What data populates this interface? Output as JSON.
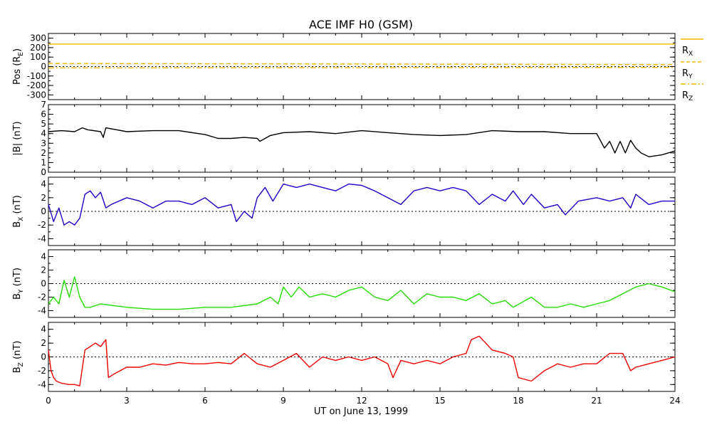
{
  "title": "ACE IMF H0 (GSM)",
  "x_axis": {
    "label": "UT on June 13, 1999",
    "min": 0,
    "max": 24,
    "ticks": [
      0,
      3,
      6,
      9,
      12,
      15,
      18,
      21,
      24
    ],
    "tick_labels": [
      "0",
      "3",
      "6",
      "9",
      "12",
      "15",
      "18",
      "21",
      "24"
    ]
  },
  "legend": {
    "placement": "right of top panel",
    "entries": [
      {
        "label": "R",
        "sub": "X",
        "color": "#f2b600",
        "dash": "solid"
      },
      {
        "label": "R",
        "sub": "Y",
        "color": "#f2b600",
        "dash": "dashed"
      },
      {
        "label": "R",
        "sub": "Z",
        "color": "#f2b600",
        "dash": "dashdot"
      }
    ]
  },
  "chart_data": [
    {
      "id": "pos",
      "type": "line",
      "ylabel": "Pos (R",
      "ylabel_sub": "E",
      "ylabel_tail": ")",
      "ylim": [
        -350,
        350
      ],
      "yticks": [
        300,
        200,
        100,
        0,
        -100,
        -200,
        -300
      ],
      "zero_line": true,
      "series": [
        {
          "name": "R_X",
          "color": "#f2b600",
          "dash": "solid",
          "x": [
            0,
            24
          ],
          "y": [
            238,
            238
          ]
        },
        {
          "name": "R_Y",
          "color": "#f2b600",
          "dash": "dashed",
          "x": [
            0,
            24
          ],
          "y": [
            33,
            20
          ]
        },
        {
          "name": "R_Z",
          "color": "#f2b600",
          "dash": "dashdot",
          "x": [
            0,
            24
          ],
          "y": [
            -15,
            -10
          ]
        }
      ]
    },
    {
      "id": "btot",
      "type": "line",
      "ylabel": "|B| (nT)",
      "ylim": [
        0,
        7
      ],
      "yticks": [
        7,
        6,
        5,
        4,
        3,
        2,
        1,
        0
      ],
      "zero_line": false,
      "series": [
        {
          "name": "|B|",
          "color": "#000000",
          "x": [
            0,
            0.5,
            1.0,
            1.3,
            1.5,
            2.0,
            2.1,
            2.2,
            3,
            4,
            5,
            6,
            6.5,
            7,
            7.5,
            8,
            8.1,
            8.5,
            9,
            10,
            11,
            12,
            13,
            14,
            15,
            16,
            17,
            18,
            19,
            20,
            21,
            21.1,
            21.3,
            21.5,
            21.7,
            21.9,
            22.1,
            22.3,
            22.5,
            22.7,
            23,
            23.5,
            24
          ],
          "y": [
            4.2,
            4.3,
            4.2,
            4.6,
            4.4,
            4.2,
            3.6,
            4.6,
            4.2,
            4.3,
            4.3,
            3.9,
            3.5,
            3.5,
            3.6,
            3.5,
            3.2,
            3.8,
            4.1,
            4.2,
            4.0,
            4.3,
            4.1,
            3.9,
            3.8,
            3.9,
            4.3,
            4.2,
            4.2,
            4.0,
            4.0,
            3.5,
            2.5,
            3.2,
            2.0,
            3.2,
            2.0,
            3.3,
            2.5,
            2.0,
            1.6,
            1.8,
            2.2
          ]
        }
      ]
    },
    {
      "id": "bx",
      "type": "line",
      "ylabel": "B",
      "ylabel_sub": "X",
      "ylabel_tail": " (nT)",
      "ylim": [
        -5,
        5
      ],
      "yticks": [
        4,
        2,
        0,
        -2,
        -4
      ],
      "zero_line": true,
      "series": [
        {
          "name": "B_X",
          "color": "#2200cc",
          "x": [
            0,
            0.2,
            0.4,
            0.6,
            0.8,
            1.0,
            1.2,
            1.4,
            1.6,
            1.8,
            2.0,
            2.2,
            2.4,
            3,
            3.5,
            4,
            4.5,
            5,
            5.5,
            6,
            6.5,
            7,
            7.2,
            7.5,
            7.8,
            8.0,
            8.3,
            8.6,
            9.0,
            9.5,
            10,
            10.5,
            11,
            11.5,
            12,
            12.5,
            13,
            13.5,
            14,
            14.5,
            15,
            15.5,
            16,
            16.5,
            17,
            17.5,
            17.8,
            18.2,
            18.5,
            19,
            19.5,
            19.8,
            20.3,
            21,
            21.5,
            22,
            22.3,
            22.5,
            23,
            23.5,
            24
          ],
          "y": [
            1.0,
            -1.5,
            0.5,
            -2.0,
            -1.5,
            -2.0,
            -1.0,
            2.5,
            3.0,
            2.0,
            2.8,
            0.5,
            1.0,
            2.0,
            1.5,
            0.5,
            1.5,
            1.5,
            1.0,
            2.0,
            0.5,
            1.0,
            -1.5,
            0.0,
            -1.0,
            2.0,
            3.5,
            1.5,
            4.0,
            3.5,
            4.0,
            3.5,
            3.0,
            4.0,
            3.8,
            3.0,
            2.0,
            1.0,
            3.0,
            3.5,
            3.0,
            3.5,
            3.0,
            1.0,
            2.5,
            1.5,
            3.0,
            1.0,
            2.5,
            0.5,
            1.0,
            -0.5,
            1.5,
            2.0,
            1.5,
            2.0,
            0.5,
            2.5,
            1.0,
            1.5,
            1.5
          ]
        }
      ]
    },
    {
      "id": "by",
      "type": "line",
      "ylabel": "B",
      "ylabel_sub": "Y",
      "ylabel_tail": " (nT)",
      "ylim": [
        -5,
        5
      ],
      "yticks": [
        4,
        2,
        0,
        -2,
        -4
      ],
      "zero_line": true,
      "series": [
        {
          "name": "B_Y",
          "color": "#22dd00",
          "x": [
            0,
            0.2,
            0.4,
            0.6,
            0.8,
            1.0,
            1.2,
            1.4,
            1.6,
            2,
            3,
            4,
            5,
            6,
            7,
            8,
            8.5,
            8.8,
            9.0,
            9.3,
            9.6,
            10,
            10.5,
            11,
            11.5,
            12,
            12.5,
            13,
            13.5,
            14,
            14.5,
            15,
            15.5,
            16,
            16.5,
            17,
            17.5,
            17.8,
            18.5,
            19,
            19.5,
            20,
            20.5,
            21,
            21.5,
            22,
            22.5,
            23,
            23.5,
            24
          ],
          "y": [
            -3.0,
            -2.0,
            -3.0,
            0.5,
            -2.0,
            1.0,
            -2.0,
            -3.5,
            -3.5,
            -3.0,
            -3.5,
            -3.8,
            -3.8,
            -3.5,
            -3.5,
            -3.0,
            -2.0,
            -3.0,
            -0.5,
            -2.0,
            -0.5,
            -2.0,
            -1.5,
            -2.0,
            -1.0,
            -0.5,
            -2.0,
            -2.5,
            -1.0,
            -3.0,
            -1.5,
            -2.0,
            -2.0,
            -2.5,
            -1.5,
            -3.0,
            -2.5,
            -3.5,
            -2.0,
            -3.5,
            -3.5,
            -3.0,
            -3.5,
            -3.0,
            -2.5,
            -1.5,
            -0.5,
            0.0,
            -0.5,
            -1.2
          ]
        }
      ]
    },
    {
      "id": "bz",
      "type": "line",
      "ylabel": "B",
      "ylabel_sub": "Z",
      "ylabel_tail": " (nT)",
      "ylim": [
        -5,
        5
      ],
      "yticks": [
        4,
        2,
        0,
        -2,
        -4
      ],
      "zero_line": true,
      "series": [
        {
          "name": "B_Z",
          "color": "#ee0000",
          "x": [
            0,
            0.1,
            0.2,
            0.3,
            0.5,
            0.8,
            1.0,
            1.2,
            1.4,
            1.6,
            1.8,
            2.0,
            2.2,
            2.3,
            2.5,
            3,
            3.5,
            4,
            4.5,
            5,
            5.5,
            6,
            6.5,
            7,
            7.5,
            8,
            8.5,
            9,
            9.5,
            10,
            10.5,
            11,
            11.5,
            12,
            12.5,
            13,
            13.2,
            13.5,
            14,
            14.5,
            15,
            15.5,
            16,
            16.2,
            16.5,
            17,
            17.5,
            17.8,
            18,
            18.5,
            19,
            19.5,
            20,
            20.5,
            21,
            21.5,
            22,
            22.3,
            22.5,
            23,
            23.5,
            24
          ],
          "y": [
            1.0,
            -2.0,
            -3.0,
            -3.5,
            -3.8,
            -4.0,
            -4.0,
            -4.2,
            1.0,
            1.5,
            2.0,
            1.5,
            2.5,
            -3.0,
            -2.5,
            -1.5,
            -1.5,
            -1.0,
            -1.2,
            -0.8,
            -1.0,
            -1.0,
            -0.8,
            -1.0,
            0.5,
            -1.0,
            -1.5,
            -0.5,
            0.5,
            -1.5,
            0.0,
            -0.5,
            0.0,
            -0.5,
            0.0,
            -1.0,
            -3.0,
            -0.5,
            -1.0,
            -0.5,
            -1.0,
            0.0,
            0.5,
            2.5,
            3.0,
            1.0,
            0.5,
            0.0,
            -3.0,
            -3.5,
            -2.0,
            -1.0,
            -1.5,
            -1.0,
            -1.0,
            0.5,
            0.5,
            -2.0,
            -1.5,
            -1.0,
            -0.5,
            0.0
          ]
        }
      ]
    }
  ]
}
